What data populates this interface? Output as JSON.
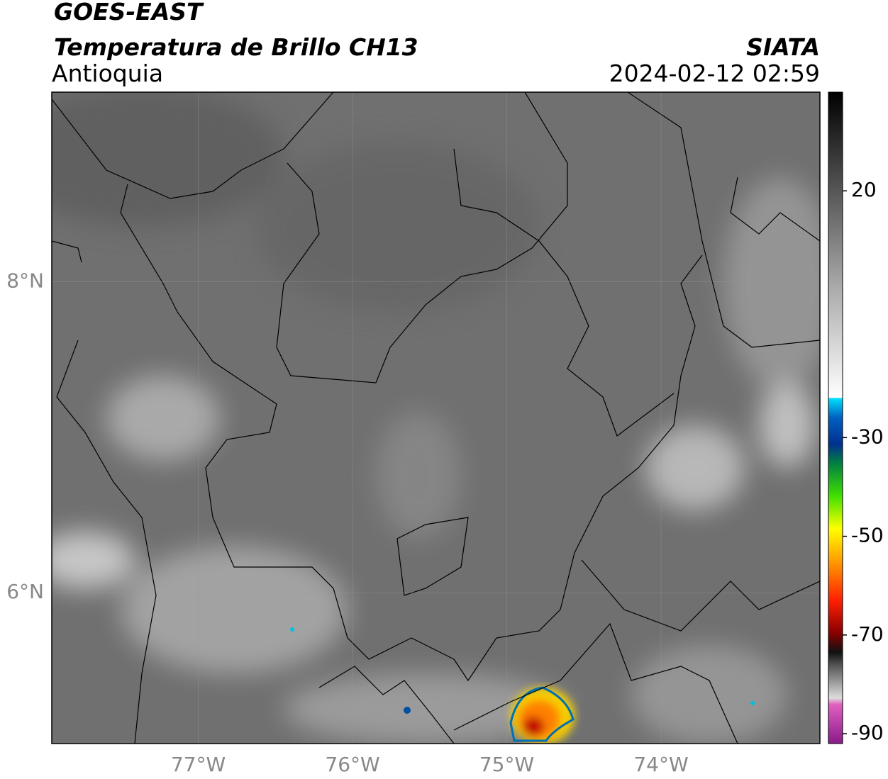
{
  "header": {
    "title": "GOES-EAST",
    "subtitle": "Temperatura de Brillo CH13",
    "region": "Antioquia",
    "source": "SIATA",
    "datetime": "2024-02-12 02:59"
  },
  "map": {
    "xlim": [
      -77.95,
      -72.97
    ],
    "ylim": [
      5.03,
      9.22
    ],
    "xticks": [
      {
        "value": -77,
        "label": "77°W"
      },
      {
        "value": -76,
        "label": "76°W"
      },
      {
        "value": -75,
        "label": "75°W"
      },
      {
        "value": -74,
        "label": "74°W"
      }
    ],
    "yticks": [
      {
        "value": 8,
        "label": "8°N"
      },
      {
        "value": 6,
        "label": "6°N"
      }
    ]
  },
  "colorbar": {
    "lim": [
      -92,
      40
    ],
    "ticks": [
      20,
      -30,
      -50,
      -70,
      -90
    ]
  }
}
